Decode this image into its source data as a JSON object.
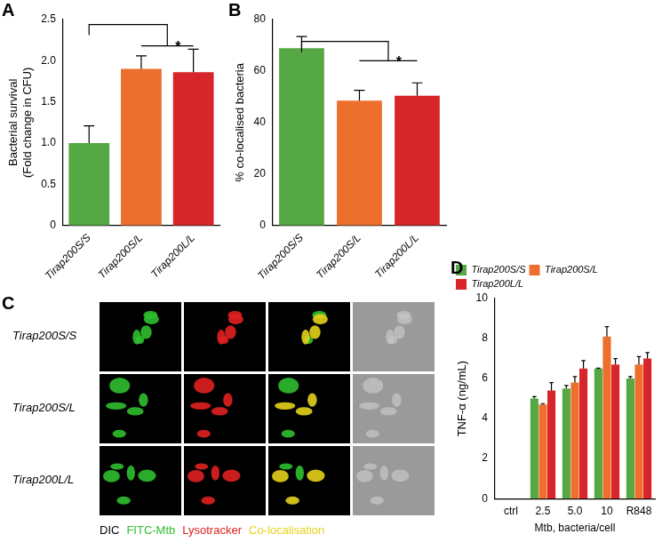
{
  "chart_data": [
    {
      "panel": "A",
      "type": "bar",
      "categories": [
        "Tirap200S/S",
        "Tirap200S/L",
        "Tirap200L/L"
      ],
      "values": [
        1.0,
        1.9,
        1.86
      ],
      "errors": [
        0.21,
        0.16,
        0.28
      ],
      "colors": [
        "#56a845",
        "#ec6f2d",
        "#d7262b"
      ],
      "y_label": [
        "Bacterial survival",
        "(Fold change in CFU)"
      ],
      "ylim": [
        0,
        2.5
      ],
      "yticks": [
        0,
        0.5,
        {
          "value": 1,
          "label": "1.0"
        },
        1.5,
        {
          "value": 2,
          "label": "2.0"
        },
        2.5
      ],
      "grid": false,
      "significance": {
        "text": "*",
        "from": [
          0
        ],
        "to": [
          1,
          2
        ],
        "y": 2.44,
        "inner_y": 2.18
      }
    },
    {
      "panel": "B",
      "type": "bar",
      "categories": [
        "Tirap200S/S",
        "Tirap200S/L",
        "Tirap200L/L"
      ],
      "values": [
        68.9,
        48.5,
        50.4
      ],
      "errors": [
        4.5,
        4,
        5
      ],
      "colors": [
        "#56a845",
        "#ec6f2d",
        "#d7262b"
      ],
      "y_label": "% co-localised bacteria",
      "ylim": [
        0,
        80
      ],
      "yticks": [
        0,
        20,
        40,
        60,
        80
      ],
      "grid": false,
      "significance": {
        "text": "*",
        "from": [
          0
        ],
        "to": [
          1,
          2
        ],
        "y": 71.5,
        "inner_y": 64
      }
    },
    {
      "panel": "D",
      "type": "bar",
      "categories": [
        "ctrl",
        "2.5",
        "5.0",
        "10",
        "R848"
      ],
      "x_label": "Mtb, bacteria/cell",
      "y_label": "TNF-α (ng/mL)",
      "ylim": [
        0,
        10
      ],
      "yticks": [
        0,
        2,
        4,
        6,
        8,
        10
      ],
      "grid": false,
      "legend": "top-left",
      "series": [
        {
          "name": "Tirap200S/S",
          "color": "#56a845",
          "values": [
            0,
            5.0,
            5.5,
            6.5,
            6.0
          ],
          "errors": [
            0,
            0.1,
            0.15,
            0.02,
            0.1
          ]
        },
        {
          "name": "Tirap200S/L",
          "color": "#ec6f2d",
          "values": [
            0,
            4.7,
            5.8,
            8.1,
            6.7
          ],
          "errors": [
            0,
            0.05,
            0.3,
            0.5,
            0.4
          ]
        },
        {
          "name": "Tirap200L/L",
          "color": "#d7262b",
          "values": [
            0,
            5.4,
            6.5,
            6.7,
            7.0
          ],
          "errors": [
            0,
            0.4,
            0.4,
            0.3,
            0.3
          ]
        }
      ]
    }
  ],
  "image_panel": {
    "panel": "C",
    "rows": [
      "Tirap200S/S",
      "Tirap200S/L",
      "Tirap200L/L"
    ],
    "channels": [
      {
        "text": "DIC",
        "color": "#000000"
      },
      {
        "text": "FITC-Mtb",
        "color": "#2fbf2f"
      },
      {
        "text": "Lysotracker",
        "color": "#e02020"
      },
      {
        "text": "Co-localisation",
        "color": "#e6d21a"
      }
    ]
  }
}
